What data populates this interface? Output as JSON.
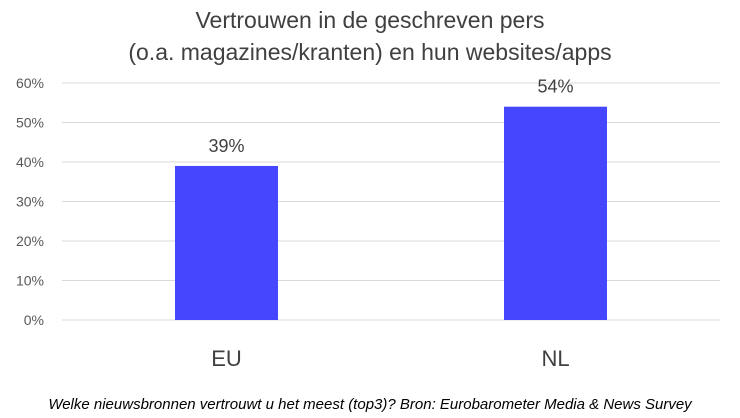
{
  "chart_data": {
    "type": "bar",
    "title_lines": [
      "Vertrouwen in de geschreven pers",
      "(o.a. magazines/kranten) en hun websites/apps"
    ],
    "categories": [
      "EU",
      "NL"
    ],
    "values": [
      39,
      54
    ],
    "data_labels": [
      "39%",
      "54%"
    ],
    "y_ticks": [
      "0%",
      "10%",
      "20%",
      "30%",
      "40%",
      "50%",
      "60%"
    ],
    "ylim": [
      0,
      60
    ],
    "grid": true,
    "legend": "none",
    "bar_color": "#4646ff",
    "grid_color": "#d9d9d9"
  },
  "footnote": "Welke nieuwsbronnen vertrouwt u het meest (top3)? Bron: Eurobarometer Media & News Survey"
}
